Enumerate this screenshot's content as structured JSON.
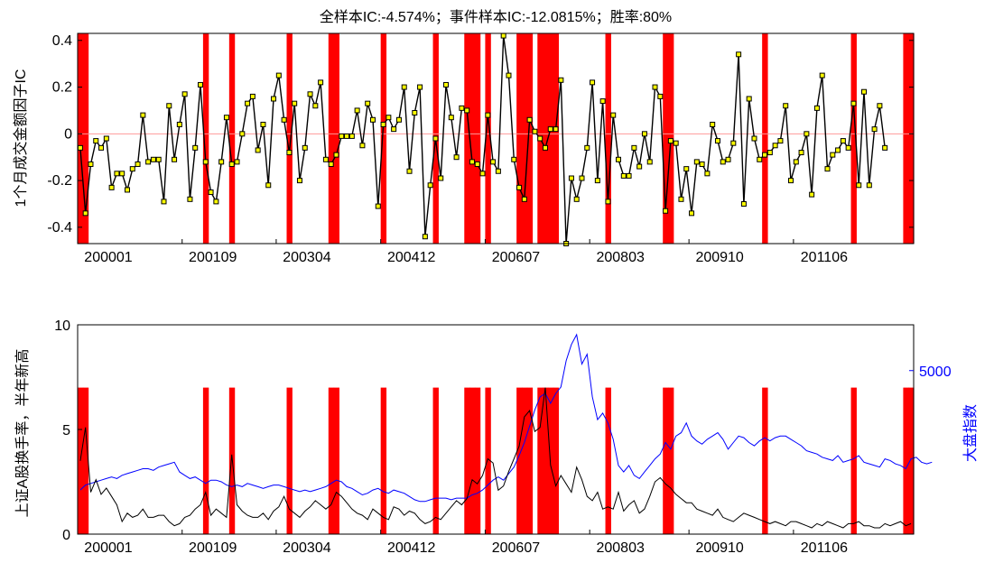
{
  "charts": {
    "top": {
      "title": "全样本IC:-4.574%；事件样本IC:-12.0815%；胜率:80%",
      "ylabel": "1个月成交金额因子IC",
      "ylim": [
        -0.47,
        0.43
      ],
      "yticks": [
        {
          "value": 0.4,
          "label": "0.4"
        },
        {
          "value": 0.2,
          "label": "0.2"
        },
        {
          "value": 0,
          "label": "0"
        },
        {
          "value": -0.2,
          "label": "-0.2"
        },
        {
          "value": -0.4,
          "label": "-0.4"
        }
      ]
    },
    "bottom": {
      "ylabel_left": "上证A股换手率，半年新高",
      "ylabel_right": "大盘指数",
      "ylim_left": [
        0,
        10
      ],
      "ylim_right": [
        0,
        6400
      ],
      "yticks_left": [
        {
          "value": 0,
          "label": "0"
        },
        {
          "value": 5,
          "label": "5"
        },
        {
          "value": 10,
          "label": "10"
        }
      ],
      "yticks_right": [
        {
          "value": 5000,
          "label": "5000"
        }
      ],
      "event_bar_height": 7
    },
    "xticks": [
      {
        "index": 0,
        "label": "200001"
      },
      {
        "index": 20,
        "label": "200109"
      },
      {
        "index": 38,
        "label": "200304"
      },
      {
        "index": 58,
        "label": "200412"
      },
      {
        "index": 78,
        "label": "200607"
      },
      {
        "index": 98,
        "label": "200803"
      },
      {
        "index": 117,
        "label": "200910"
      },
      {
        "index": 137,
        "label": "201106"
      }
    ],
    "x_count": 160
  },
  "chart_data": {
    "type": "line",
    "x_range": [
      "200001",
      "201304"
    ],
    "event_months": [
      0,
      1,
      24,
      29,
      40,
      48,
      49,
      58,
      68,
      74,
      75,
      76,
      78,
      84,
      85,
      86,
      88,
      89,
      90,
      91,
      101,
      112,
      113,
      131,
      148,
      158,
      159
    ],
    "series": [
      {
        "color": "#000000",
        "marker_color": "#ffff00",
        "values": [
          -0.06,
          -0.34,
          -0.13,
          -0.03,
          -0.06,
          -0.02,
          -0.23,
          -0.17,
          -0.17,
          -0.24,
          -0.15,
          -0.13,
          0.08,
          -0.12,
          -0.11,
          -0.11,
          -0.29,
          0.12,
          -0.11,
          0.04,
          0.17,
          -0.28,
          -0.06,
          0.21,
          -0.12,
          -0.25,
          -0.29,
          -0.12,
          0.07,
          -0.13,
          -0.12,
          0.0,
          0.13,
          0.16,
          -0.07,
          0.04,
          -0.22,
          0.15,
          0.25,
          0.06,
          -0.08,
          0.13,
          -0.2,
          -0.06,
          0.17,
          0.12,
          0.22,
          -0.11,
          -0.13,
          -0.09,
          -0.01,
          -0.01,
          -0.01,
          0.1,
          -0.05,
          0.13,
          0.06,
          -0.31,
          0.04,
          0.07,
          0.02,
          0.06,
          0.2,
          -0.16,
          0.09,
          0.2,
          -0.44,
          -0.22,
          -0.02,
          -0.19,
          0.21,
          0.07,
          -0.1,
          0.11,
          0.1,
          -0.12,
          -0.13,
          -0.17,
          0.08,
          -0.12,
          -0.16,
          0.42,
          0.25,
          -0.11,
          -0.23,
          -0.28,
          0.06,
          0.01,
          -0.02,
          -0.06,
          0.02,
          0.02,
          0.23,
          -0.47,
          -0.19,
          -0.28,
          -0.19,
          -0.06,
          0.22,
          -0.2,
          0.14,
          -0.29,
          0.08,
          -0.11,
          -0.18,
          -0.18,
          -0.06,
          -0.14,
          0.0,
          -0.12,
          0.2,
          0.16,
          -0.33,
          -0.03,
          -0.04,
          -0.28,
          -0.15,
          -0.34,
          -0.12,
          -0.13,
          -0.17,
          0.04,
          -0.03,
          -0.12,
          -0.11,
          -0.04,
          0.34,
          -0.3,
          0.15,
          -0.02,
          -0.11,
          -0.09,
          -0.08,
          -0.05,
          -0.03,
          0.12,
          -0.2,
          -0.12,
          -0.08,
          0.0,
          -0.26,
          0.11,
          0.25,
          -0.15,
          -0.09,
          -0.07,
          -0.03,
          -0.06,
          0.13,
          -0.22,
          0.18,
          -0.22,
          0.02,
          0.12,
          -0.06
        ]
      },
      {
        "name": "上证A股换手率",
        "axis": "left",
        "color": "#000000",
        "values": [
          3.5,
          5.1,
          2.0,
          2.6,
          1.9,
          2.2,
          1.8,
          1.4,
          0.6,
          1.0,
          0.8,
          0.9,
          1.2,
          0.8,
          0.8,
          0.9,
          0.9,
          0.6,
          0.4,
          0.5,
          0.8,
          0.9,
          1.2,
          1.4,
          2.0,
          0.9,
          1.2,
          1.0,
          0.8,
          3.8,
          1.4,
          1.1,
          0.9,
          0.8,
          0.8,
          1.0,
          0.7,
          1.1,
          1.3,
          1.8,
          1.2,
          1.0,
          0.8,
          1.1,
          1.3,
          1.6,
          1.4,
          1.2,
          1.4,
          2.0,
          1.8,
          1.5,
          1.2,
          1.0,
          0.9,
          0.7,
          1.2,
          1.0,
          0.8,
          0.7,
          1.3,
          1.2,
          0.9,
          1.1,
          1.0,
          0.7,
          0.5,
          0.6,
          0.8,
          0.7,
          1.0,
          1.3,
          1.6,
          1.4,
          1.7,
          2.6,
          2.4,
          2.8,
          3.6,
          3.4,
          2.1,
          2.3,
          3.0,
          3.6,
          4.2,
          5.6,
          5.9,
          4.9,
          5.1,
          7.0,
          3.3,
          2.3,
          2.8,
          2.4,
          2.0,
          3.2,
          2.6,
          1.8,
          1.6,
          2.0,
          1.2,
          1.3,
          1.2,
          2.0,
          1.1,
          1.4,
          1.6,
          1.0,
          1.2,
          1.8,
          2.5,
          2.7,
          2.4,
          2.2,
          1.9,
          1.7,
          1.5,
          1.5,
          1.2,
          1.1,
          1.0,
          0.9,
          1.2,
          0.8,
          0.7,
          0.6,
          0.8,
          1.0,
          0.9,
          0.8,
          0.7,
          0.6,
          0.5,
          0.6,
          0.5,
          0.4,
          0.6,
          0.6,
          0.5,
          0.4,
          0.3,
          0.5,
          0.4,
          0.6,
          0.5,
          0.4,
          0.3,
          0.5,
          0.5,
          0.6,
          0.4,
          0.4,
          0.3,
          0.3,
          0.5,
          0.4,
          0.5,
          0.6,
          0.4,
          0.5
        ]
      },
      {
        "name": "大盘指数",
        "axis": "right",
        "color": "#0000ff",
        "values": [
          1350,
          1500,
          1550,
          1600,
          1650,
          1700,
          1750,
          1700,
          1800,
          1850,
          1900,
          1950,
          2000,
          2000,
          1950,
          2050,
          2100,
          2150,
          2200,
          1900,
          1800,
          1700,
          1750,
          1650,
          1550,
          1650,
          1650,
          1600,
          1500,
          1450,
          1500,
          1450,
          1550,
          1500,
          1450,
          1400,
          1450,
          1500,
          1500,
          1450,
          1400,
          1350,
          1300,
          1350,
          1300,
          1350,
          1400,
          1450,
          1550,
          1650,
          1600,
          1450,
          1400,
          1300,
          1200,
          1250,
          1350,
          1400,
          1300,
          1250,
          1350,
          1300,
          1250,
          1150,
          1050,
          1000,
          1000,
          1050,
          1100,
          1100,
          1100,
          1050,
          1100,
          1100,
          1100,
          1200,
          1250,
          1350,
          1500,
          1650,
          1750,
          1650,
          1850,
          2050,
          2400,
          2800,
          3300,
          3800,
          4200,
          4300,
          4000,
          4300,
          4500,
          5300,
          5800,
          6100,
          5200,
          5500,
          4200,
          3500,
          3700,
          3400,
          2900,
          2100,
          1900,
          2100,
          1800,
          1700,
          1900,
          2100,
          2300,
          2450,
          2800,
          2600,
          3000,
          3100,
          3400,
          3000,
          2850,
          2750,
          2900,
          3000,
          3100,
          2900,
          2600,
          2800,
          3000,
          2950,
          2800,
          2700,
          2850,
          2950,
          2850,
          2950,
          3000,
          3000,
          2900,
          2800,
          2700,
          2550,
          2500,
          2450,
          2350,
          2300,
          2250,
          2400,
          2200,
          2250,
          2300,
          2400,
          2200,
          2150,
          2100,
          2050,
          2300,
          2250,
          2150,
          2100,
          2000,
          2300,
          2350,
          2200,
          2150,
          2200
        ]
      }
    ]
  }
}
